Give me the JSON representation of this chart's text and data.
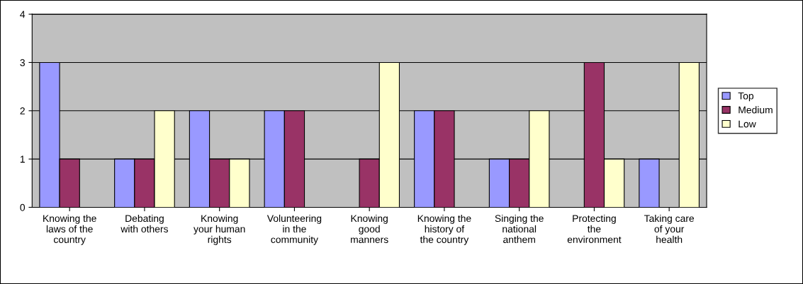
{
  "chart_data": {
    "type": "bar",
    "categories": [
      "Knowing the\nlaws of the\ncountry",
      "Debating\nwith others",
      "Knowing\nyour human\nrights",
      "Volunteering\nin the\ncommunity",
      "Knowing\ngood\nmanners",
      "Knowing the\nhistory of\nthe country",
      "Singing the\nnational\nanthem",
      "Protecting\nthe\nenvironment",
      "Taking care\nof your\nhealth"
    ],
    "series": [
      {
        "name": "Top",
        "color": "#9999ff",
        "values": [
          3,
          1,
          2,
          2,
          0,
          2,
          1,
          0,
          1
        ]
      },
      {
        "name": "Medium",
        "color": "#993366",
        "values": [
          1,
          1,
          1,
          2,
          1,
          2,
          1,
          3,
          0
        ]
      },
      {
        "name": "Low",
        "color": "#ffffcc",
        "values": [
          0,
          2,
          1,
          0,
          3,
          0,
          2,
          1,
          3
        ]
      }
    ],
    "ylim": [
      0,
      4
    ],
    "yticks": [
      0,
      1,
      2,
      3,
      4
    ],
    "grid": "y",
    "legend": "right"
  }
}
